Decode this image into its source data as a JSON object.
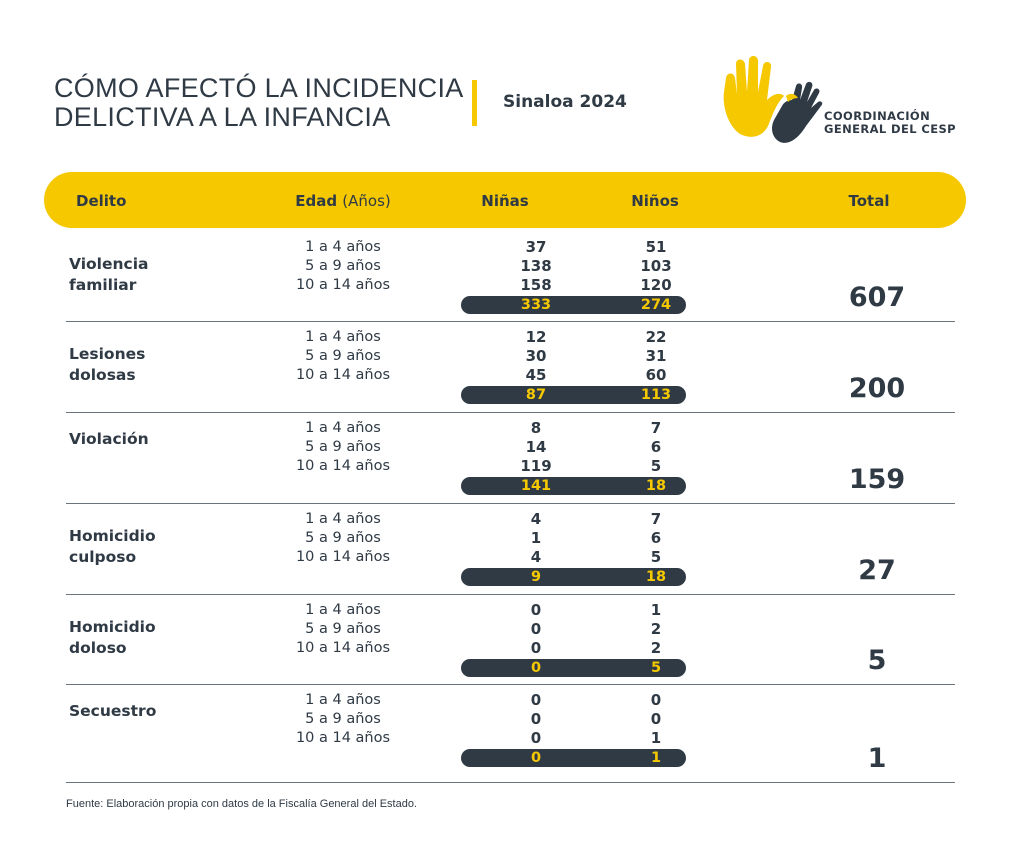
{
  "header": {
    "title_line1": "CÓMO AFECTÓ LA INCIDENCIA",
    "title_line2": "DELICTIVA A LA INFANCIA",
    "region": "Sinaloa 2024",
    "logo_line1": "COORDINACIÓN",
    "logo_line2": "GENERAL DEL CESP"
  },
  "colors": {
    "accent": "#f5c800",
    "dark": "#2f3a45",
    "rule": "#6b737b"
  },
  "columns": {
    "delito": "Delito",
    "edad": "Edad",
    "edad_unit": "(Años)",
    "ninas": "Niñas",
    "ninos": "Niños",
    "total": "Total"
  },
  "chart_data": {
    "type": "table",
    "age_groups": [
      "1 a 4 años",
      "5 a 9 años",
      "10 a 14 años"
    ],
    "rows": [
      {
        "crime": [
          "Violencia",
          "familiar"
        ],
        "ninas": [
          "37",
          "138",
          "158"
        ],
        "ninos": [
          "51",
          "103",
          "120"
        ],
        "ninas_total": "333",
        "ninos_total": "274",
        "total": "607"
      },
      {
        "crime": [
          "Lesiones",
          "dolosas"
        ],
        "ninas": [
          "12",
          "30",
          "45"
        ],
        "ninos": [
          "22",
          "31",
          "60"
        ],
        "ninas_total": "87",
        "ninos_total": "113",
        "total": "200"
      },
      {
        "crime": [
          "Violación"
        ],
        "ninas": [
          "8",
          "14",
          "119"
        ],
        "ninos": [
          "7",
          "6",
          "5"
        ],
        "ninas_total": "141",
        "ninos_total": "18",
        "total": "159"
      },
      {
        "crime": [
          "Homicidio",
          "culposo"
        ],
        "ninas": [
          "4",
          "1",
          "4"
        ],
        "ninos": [
          "7",
          "6",
          "5"
        ],
        "ninas_total": "9",
        "ninos_total": "18",
        "total": "27"
      },
      {
        "crime": [
          "Homicidio",
          "doloso"
        ],
        "ninas": [
          "0",
          "0",
          "0"
        ],
        "ninos": [
          "1",
          "2",
          "2"
        ],
        "ninas_total": "0",
        "ninos_total": "5",
        "total": "5"
      },
      {
        "crime": [
          "Secuestro"
        ],
        "ninas": [
          "0",
          "0",
          "0"
        ],
        "ninos": [
          "0",
          "0",
          "1"
        ],
        "ninas_total": "0",
        "ninos_total": "1",
        "total": "1"
      }
    ]
  },
  "footer": {
    "source": "Fuente: Elaboración propia con datos de la Fiscalía General del Estado."
  }
}
